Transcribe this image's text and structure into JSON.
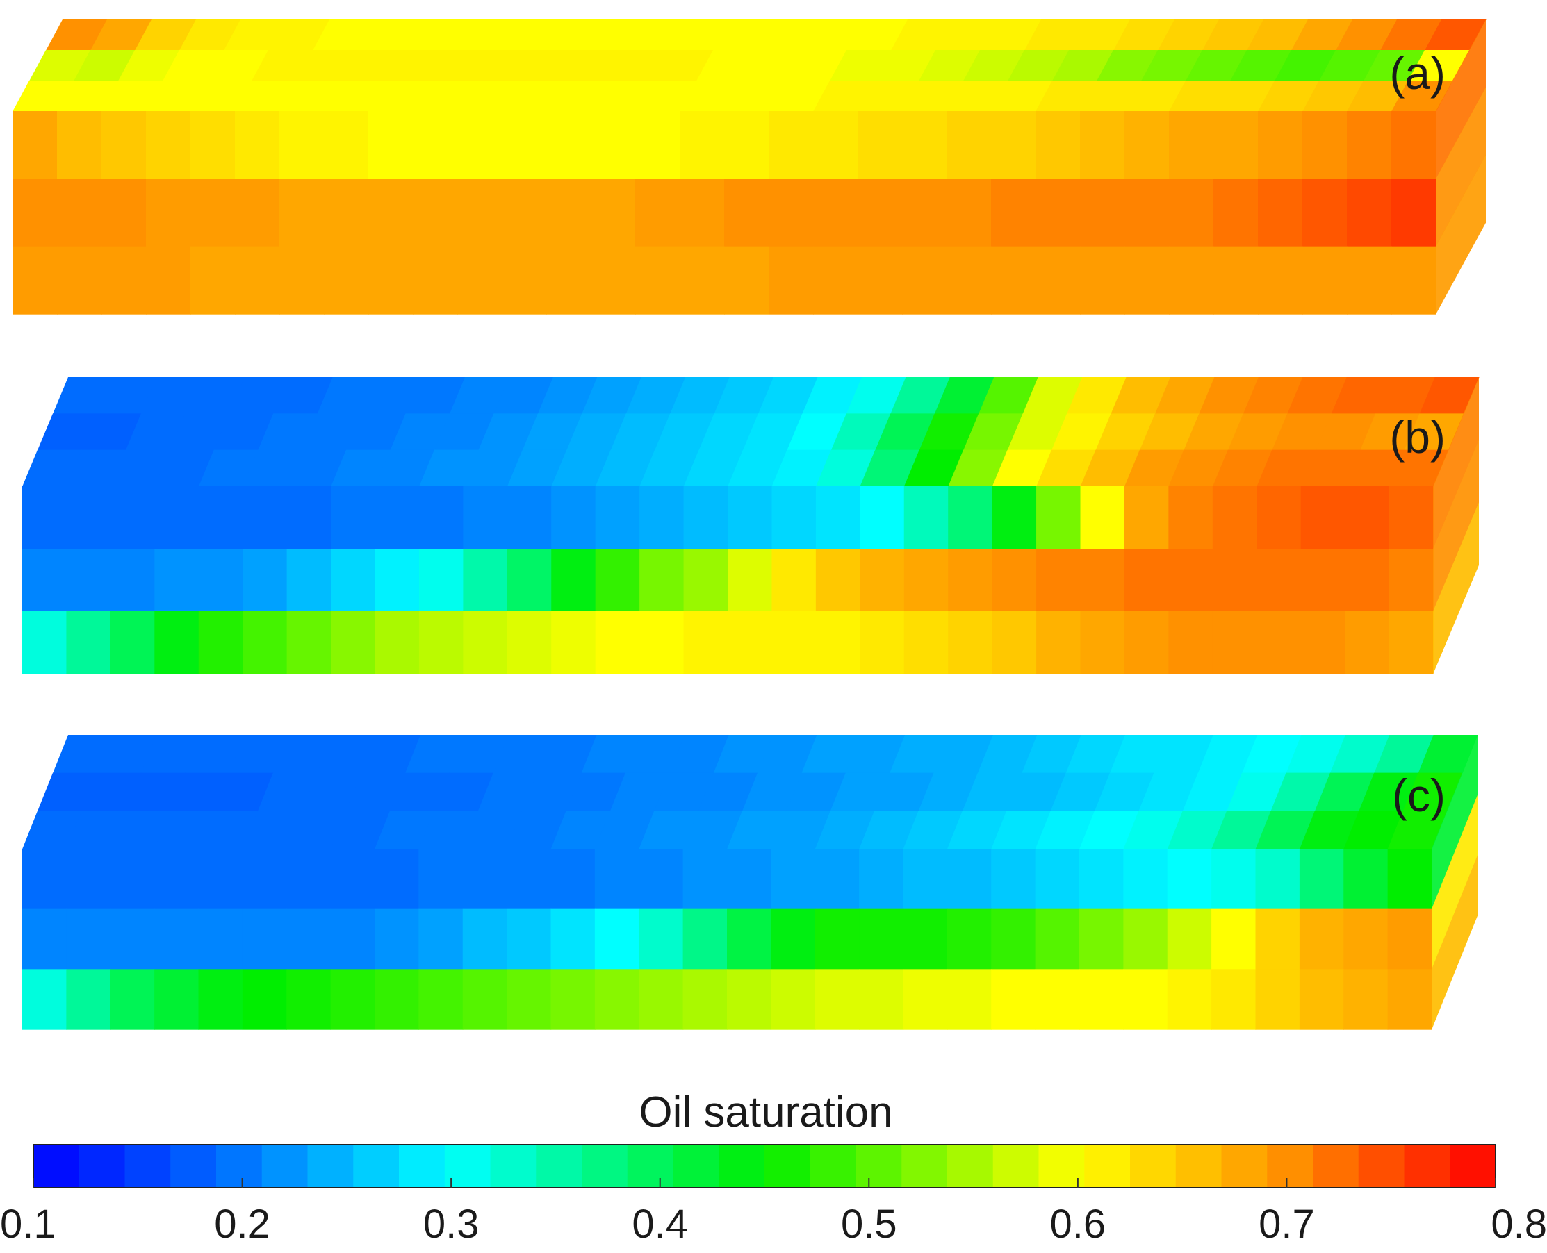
{
  "figure": {
    "colorbar": {
      "title": "Oil saturation",
      "min": 0.1,
      "max": 0.8,
      "tick_labels": [
        "0.1",
        "0.2",
        "0.3",
        "0.4",
        "0.5",
        "0.6",
        "0.7",
        "0.8"
      ],
      "tick_values": [
        0.1,
        0.2,
        0.3,
        0.4,
        0.5,
        0.6,
        0.7,
        0.8
      ],
      "band_count": 32
    },
    "panels": [
      {
        "label": "(a)",
        "top_rows": [
          [
            0.7,
            0.68,
            0.64,
            0.62,
            0.61,
            0.61,
            0.6,
            0.6,
            0.6,
            0.6,
            0.6,
            0.6,
            0.6,
            0.6,
            0.6,
            0.6,
            0.6,
            0.6,
            0.6,
            0.61,
            0.61,
            0.61,
            0.62,
            0.62,
            0.63,
            0.64,
            0.65,
            0.66,
            0.68,
            0.7,
            0.72,
            0.74
          ],
          [
            0.58,
            0.57,
            0.59,
            0.6,
            0.6,
            0.61,
            0.61,
            0.61,
            0.61,
            0.61,
            0.61,
            0.61,
            0.61,
            0.61,
            0.61,
            0.6,
            0.6,
            0.6,
            0.59,
            0.59,
            0.58,
            0.57,
            0.56,
            0.55,
            0.53,
            0.52,
            0.51,
            0.5,
            0.49,
            0.5,
            0.51,
            0.6
          ],
          [
            0.6,
            0.6,
            0.6,
            0.6,
            0.6,
            0.6,
            0.6,
            0.6,
            0.6,
            0.6,
            0.6,
            0.6,
            0.6,
            0.6,
            0.6,
            0.6,
            0.6,
            0.6,
            0.61,
            0.61,
            0.61,
            0.61,
            0.61,
            0.62,
            0.62,
            0.62,
            0.63,
            0.63,
            0.64,
            0.65,
            0.66,
            0.7
          ]
        ],
        "front_rows": [
          [
            0.68,
            0.66,
            0.65,
            0.64,
            0.63,
            0.62,
            0.61,
            0.61,
            0.6,
            0.6,
            0.6,
            0.6,
            0.6,
            0.6,
            0.6,
            0.61,
            0.61,
            0.62,
            0.62,
            0.63,
            0.63,
            0.64,
            0.64,
            0.65,
            0.66,
            0.67,
            0.68,
            0.68,
            0.69,
            0.7,
            0.71,
            0.72
          ],
          [
            0.7,
            0.7,
            0.7,
            0.69,
            0.69,
            0.69,
            0.68,
            0.68,
            0.68,
            0.68,
            0.68,
            0.68,
            0.68,
            0.68,
            0.69,
            0.69,
            0.7,
            0.7,
            0.7,
            0.7,
            0.7,
            0.7,
            0.71,
            0.71,
            0.71,
            0.71,
            0.71,
            0.72,
            0.73,
            0.74,
            0.75,
            0.76
          ],
          [
            0.69,
            0.69,
            0.69,
            0.69,
            0.68,
            0.68,
            0.68,
            0.68,
            0.68,
            0.68,
            0.68,
            0.68,
            0.68,
            0.68,
            0.68,
            0.68,
            0.68,
            0.69,
            0.69,
            0.69,
            0.69,
            0.69,
            0.69,
            0.69,
            0.69,
            0.69,
            0.69,
            0.69,
            0.69,
            0.69,
            0.69,
            0.69
          ]
        ],
        "side_rows": [
          0.72,
          0.7,
          0.69
        ]
      },
      {
        "label": "(b)",
        "top_rows": [
          [
            0.19,
            0.19,
            0.19,
            0.19,
            0.19,
            0.19,
            0.2,
            0.2,
            0.2,
            0.21,
            0.21,
            0.22,
            0.23,
            0.24,
            0.25,
            0.26,
            0.27,
            0.29,
            0.31,
            0.36,
            0.42,
            0.5,
            0.58,
            0.62,
            0.66,
            0.68,
            0.7,
            0.71,
            0.72,
            0.73,
            0.73,
            0.74
          ],
          [
            0.18,
            0.18,
            0.19,
            0.19,
            0.19,
            0.2,
            0.2,
            0.2,
            0.21,
            0.21,
            0.22,
            0.23,
            0.24,
            0.25,
            0.26,
            0.27,
            0.28,
            0.3,
            0.34,
            0.4,
            0.46,
            0.52,
            0.58,
            0.61,
            0.64,
            0.66,
            0.68,
            0.69,
            0.7,
            0.7,
            0.69,
            0.68
          ],
          [
            0.19,
            0.19,
            0.19,
            0.19,
            0.2,
            0.2,
            0.2,
            0.21,
            0.21,
            0.22,
            0.22,
            0.23,
            0.24,
            0.25,
            0.26,
            0.27,
            0.28,
            0.29,
            0.32,
            0.38,
            0.45,
            0.53,
            0.6,
            0.63,
            0.66,
            0.69,
            0.7,
            0.71,
            0.72,
            0.72,
            0.72,
            0.72
          ]
        ],
        "front_rows": [
          [
            0.19,
            0.19,
            0.19,
            0.19,
            0.19,
            0.19,
            0.19,
            0.2,
            0.2,
            0.2,
            0.21,
            0.21,
            0.22,
            0.23,
            0.24,
            0.25,
            0.26,
            0.27,
            0.28,
            0.3,
            0.34,
            0.38,
            0.44,
            0.52,
            0.6,
            0.68,
            0.71,
            0.72,
            0.73,
            0.74,
            0.74,
            0.73
          ],
          [
            0.21,
            0.21,
            0.21,
            0.22,
            0.22,
            0.23,
            0.25,
            0.27,
            0.29,
            0.31,
            0.35,
            0.39,
            0.44,
            0.48,
            0.52,
            0.54,
            0.58,
            0.62,
            0.65,
            0.67,
            0.68,
            0.69,
            0.7,
            0.71,
            0.71,
            0.72,
            0.72,
            0.72,
            0.72,
            0.72,
            0.72,
            0.71
          ],
          [
            0.32,
            0.36,
            0.4,
            0.44,
            0.47,
            0.49,
            0.51,
            0.53,
            0.55,
            0.56,
            0.57,
            0.58,
            0.59,
            0.6,
            0.6,
            0.61,
            0.61,
            0.61,
            0.61,
            0.62,
            0.63,
            0.64,
            0.65,
            0.67,
            0.68,
            0.69,
            0.7,
            0.7,
            0.7,
            0.7,
            0.69,
            0.68
          ]
        ],
        "side_rows": [
          0.71,
          0.7,
          0.66
        ]
      },
      {
        "label": "(c)",
        "top_rows": [
          [
            0.19,
            0.19,
            0.19,
            0.19,
            0.19,
            0.19,
            0.19,
            0.19,
            0.2,
            0.2,
            0.2,
            0.2,
            0.21,
            0.21,
            0.21,
            0.22,
            0.22,
            0.23,
            0.23,
            0.24,
            0.24,
            0.25,
            0.26,
            0.27,
            0.28,
            0.28,
            0.29,
            0.3,
            0.31,
            0.33,
            0.36,
            0.42
          ],
          [
            0.18,
            0.18,
            0.18,
            0.18,
            0.18,
            0.19,
            0.19,
            0.19,
            0.19,
            0.19,
            0.2,
            0.2,
            0.2,
            0.21,
            0.21,
            0.21,
            0.22,
            0.22,
            0.23,
            0.23,
            0.24,
            0.25,
            0.25,
            0.26,
            0.27,
            0.28,
            0.29,
            0.31,
            0.35,
            0.4,
            0.44,
            0.46
          ],
          [
            0.19,
            0.19,
            0.19,
            0.19,
            0.19,
            0.19,
            0.19,
            0.19,
            0.2,
            0.2,
            0.2,
            0.2,
            0.21,
            0.21,
            0.22,
            0.22,
            0.23,
            0.23,
            0.24,
            0.25,
            0.26,
            0.27,
            0.28,
            0.29,
            0.3,
            0.31,
            0.33,
            0.36,
            0.4,
            0.44,
            0.45,
            0.46
          ]
        ],
        "front_rows": [
          [
            0.19,
            0.19,
            0.19,
            0.19,
            0.19,
            0.19,
            0.19,
            0.19,
            0.19,
            0.2,
            0.2,
            0.2,
            0.2,
            0.21,
            0.21,
            0.22,
            0.22,
            0.23,
            0.23,
            0.24,
            0.25,
            0.25,
            0.26,
            0.27,
            0.28,
            0.29,
            0.3,
            0.31,
            0.33,
            0.38,
            0.42,
            0.45
          ],
          [
            0.21,
            0.21,
            0.21,
            0.21,
            0.21,
            0.21,
            0.21,
            0.21,
            0.22,
            0.23,
            0.25,
            0.26,
            0.28,
            0.3,
            0.33,
            0.37,
            0.41,
            0.44,
            0.46,
            0.46,
            0.46,
            0.47,
            0.48,
            0.5,
            0.52,
            0.54,
            0.57,
            0.6,
            0.64,
            0.67,
            0.68,
            0.69
          ],
          [
            0.32,
            0.36,
            0.4,
            0.42,
            0.44,
            0.45,
            0.46,
            0.47,
            0.48,
            0.49,
            0.5,
            0.51,
            0.52,
            0.53,
            0.54,
            0.55,
            0.56,
            0.57,
            0.58,
            0.58,
            0.59,
            0.59,
            0.6,
            0.6,
            0.6,
            0.6,
            0.61,
            0.62,
            0.64,
            0.66,
            0.67,
            0.68
          ]
        ],
        "side_rows": [
          0.42,
          0.62,
          0.66
        ]
      }
    ]
  }
}
